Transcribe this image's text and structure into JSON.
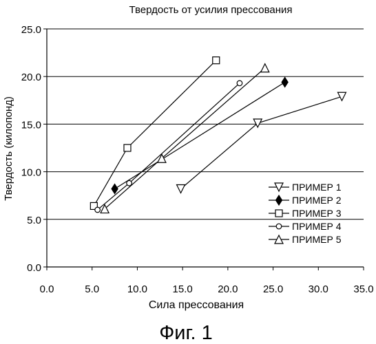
{
  "figure_caption": "Фиг. 1",
  "chart_data": {
    "type": "line",
    "title": "Твердость от усилия прессования",
    "xlabel": "Сила прессования",
    "ylabel": "Твердость (килопонд)",
    "xlim": [
      0,
      35
    ],
    "ylim": [
      0,
      25
    ],
    "x_ticks": [
      "0.0",
      "5.0",
      "10.0",
      "15.0",
      "20.0",
      "25.0",
      "30.0",
      "35.0"
    ],
    "y_ticks": [
      "0.0",
      "5.0",
      "10.0",
      "15.0",
      "20.0",
      "25.0"
    ],
    "x_tick_values": [
      0,
      5,
      10,
      15,
      20,
      25,
      30,
      35
    ],
    "y_tick_values": [
      0,
      5,
      10,
      15,
      20,
      25
    ],
    "grid": "horizontal",
    "legend_position": "bottom-right",
    "series": [
      {
        "name": "ПРИМЕР 1",
        "marker": "triangle-down-open",
        "x": [
          14.8,
          23.3,
          32.6
        ],
        "y": [
          8.2,
          15.1,
          17.9
        ]
      },
      {
        "name": "ПРИМЕР 2",
        "marker": "diamond-filled",
        "x": [
          7.5,
          26.3
        ],
        "y": [
          8.2,
          19.4
        ]
      },
      {
        "name": "ПРИМЕР 3",
        "marker": "square-open",
        "x": [
          5.2,
          8.9,
          18.7
        ],
        "y": [
          6.4,
          12.5,
          21.7
        ]
      },
      {
        "name": "ПРИМЕР 4",
        "marker": "circle-open",
        "x": [
          5.6,
          9.1,
          21.3
        ],
        "y": [
          6.0,
          8.8,
          19.3
        ]
      },
      {
        "name": "ПРИМЕР 5",
        "marker": "triangle-up-open",
        "x": [
          6.4,
          12.7,
          24.1
        ],
        "y": [
          6.1,
          11.4,
          20.9
        ]
      }
    ]
  }
}
